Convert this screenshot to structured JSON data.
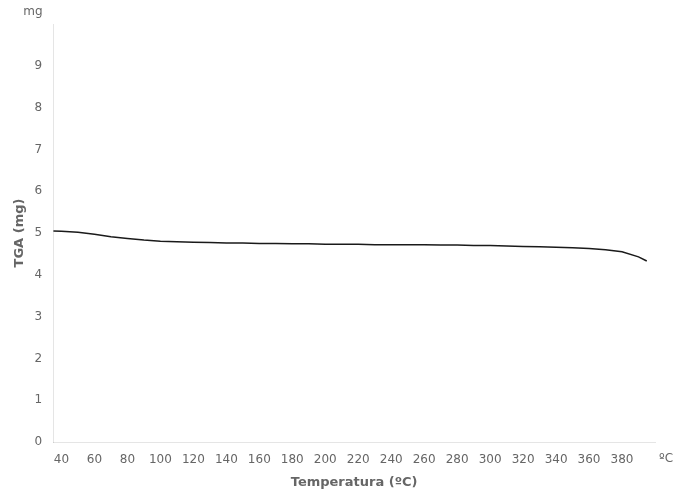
{
  "chart_data": {
    "type": "line",
    "xlabel": "Temperatura (ºC)",
    "ylabel": "TGA (mg)",
    "annotations": [
      "mg",
      "ºC"
    ],
    "xlim": [
      35,
      400
    ],
    "ylim": [
      0,
      10
    ],
    "xticks": [
      40,
      60,
      80,
      100,
      120,
      140,
      160,
      180,
      200,
      220,
      240,
      260,
      280,
      300,
      320,
      340,
      360,
      380
    ],
    "yticks": [
      0,
      1,
      2,
      3,
      4,
      5,
      6,
      7,
      8,
      9
    ],
    "grid": false,
    "color": "#1a1a1a",
    "x": [
      35,
      40,
      50,
      60,
      70,
      80,
      90,
      100,
      110,
      120,
      130,
      140,
      150,
      160,
      170,
      180,
      190,
      200,
      210,
      220,
      230,
      240,
      250,
      260,
      270,
      280,
      290,
      300,
      310,
      320,
      330,
      340,
      350,
      360,
      370,
      380,
      390,
      395
    ],
    "values": [
      5.05,
      5.04,
      5.02,
      4.97,
      4.91,
      4.87,
      4.83,
      4.8,
      4.79,
      4.78,
      4.77,
      4.76,
      4.76,
      4.75,
      4.75,
      4.74,
      4.74,
      4.73,
      4.73,
      4.73,
      4.72,
      4.72,
      4.72,
      4.72,
      4.71,
      4.71,
      4.7,
      4.7,
      4.69,
      4.68,
      4.67,
      4.66,
      4.65,
      4.63,
      4.6,
      4.55,
      4.43,
      4.33
    ]
  }
}
